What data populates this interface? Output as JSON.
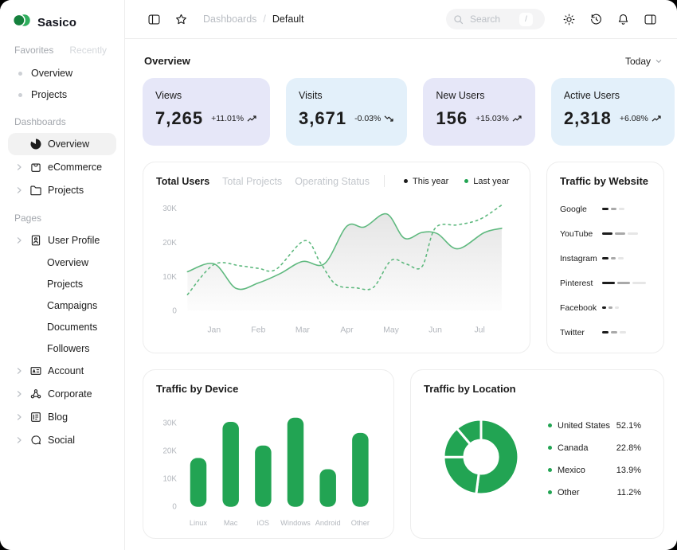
{
  "brand": {
    "name": "Sasico",
    "logo_dark_green": "#15803D",
    "logo_light_green": "#2FAE5D"
  },
  "sidebar": {
    "tabs": {
      "favorites": "Favorites",
      "recently": "Recently"
    },
    "favorites": [
      "Overview",
      "Projects"
    ],
    "dashboards": {
      "label": "Dashboards",
      "items": [
        {
          "label": "Overview",
          "icon": "pie-chart-icon",
          "active": true,
          "chevron": false
        },
        {
          "label": "eCommerce",
          "icon": "shopping-bag-icon",
          "active": false,
          "chevron": true
        },
        {
          "label": "Projects",
          "icon": "folder-icon",
          "active": false,
          "chevron": true
        }
      ]
    },
    "pages": {
      "label": "Pages",
      "items": [
        {
          "label": "User Profile",
          "icon": "id-card-icon",
          "chevron": true,
          "children": [
            "Overview",
            "Projects",
            "Campaigns",
            "Documents",
            "Followers"
          ]
        },
        {
          "label": "Account",
          "icon": "account-card-icon",
          "chevron": true,
          "children": []
        },
        {
          "label": "Corporate",
          "icon": "corporate-icon",
          "chevron": true,
          "children": []
        },
        {
          "label": "Blog",
          "icon": "blog-icon",
          "chevron": true,
          "children": []
        },
        {
          "label": "Social",
          "icon": "social-icon",
          "chevron": true,
          "children": []
        }
      ]
    }
  },
  "header": {
    "breadcrumb": {
      "section": "Dashboards",
      "separator": "/",
      "current": "Default"
    },
    "search": {
      "placeholder": "Search",
      "shortcut": "/"
    }
  },
  "main": {
    "title": "Overview",
    "period": "Today",
    "stats": [
      {
        "label": "Views",
        "value": "7,265",
        "delta": "+11.01%",
        "trend": "up",
        "bg": "#E6E7F8"
      },
      {
        "label": "Visits",
        "value": "3,671",
        "delta": "-0.03%",
        "trend": "down",
        "bg": "#E3F0FA"
      },
      {
        "label": "New Users",
        "value": "156",
        "delta": "+15.03%",
        "trend": "up",
        "bg": "#E6E7F8"
      },
      {
        "label": "Active Users",
        "value": "2,318",
        "delta": "+6.08%",
        "trend": "up",
        "bg": "#E3F0FA"
      }
    ]
  },
  "colors": {
    "green": "#22A453",
    "line_green": "#5FB97F",
    "text_dark": "#1C1C1C",
    "axis_gray": "#B3B7BD",
    "website_segments": [
      "#1C1C1C",
      "#A9A9A9",
      "#E6E6E6"
    ]
  },
  "chart_data": [
    {
      "type": "line",
      "title": "Total Users",
      "tabs": [
        "Total Users",
        "Total Projects",
        "Operating Status"
      ],
      "active_tab": "Total Users",
      "legend": [
        {
          "name": "This year",
          "color": "#1C1C1C"
        },
        {
          "name": "Last year",
          "color": "#22A453"
        }
      ],
      "x_ticks": [
        "Jan",
        "Feb",
        "Mar",
        "Apr",
        "May",
        "Jun",
        "Jul"
      ],
      "y_ticks": [
        {
          "v": 0,
          "label": "0"
        },
        {
          "v": 10,
          "label": "10K"
        },
        {
          "v": 20,
          "label": "20K"
        },
        {
          "v": 30,
          "label": "30K"
        }
      ],
      "unit": "K",
      "ylim": [
        0,
        32
      ],
      "series": [
        {
          "name": "This year",
          "style": "solid",
          "fill": true,
          "points": [
            [
              -0.6,
              11.5
            ],
            [
              0,
              13.8
            ],
            [
              0.5,
              6.6
            ],
            [
              1,
              8.2
            ],
            [
              1.5,
              11.0
            ],
            [
              2,
              14.5
            ],
            [
              2.5,
              13.9
            ],
            [
              3,
              24.8
            ],
            [
              3.4,
              24.6
            ],
            [
              3.9,
              28.4
            ],
            [
              4.3,
              21.3
            ],
            [
              4.7,
              23.0
            ],
            [
              5.05,
              22.6
            ],
            [
              5.5,
              18.2
            ],
            [
              6.1,
              22.9
            ],
            [
              6.5,
              24.2
            ]
          ]
        },
        {
          "name": "Last year",
          "style": "dashed",
          "fill": false,
          "points": [
            [
              -0.6,
              4.8
            ],
            [
              0,
              13.6
            ],
            [
              0.6,
              13.2
            ],
            [
              1,
              12.5
            ],
            [
              1.4,
              12.2
            ],
            [
              2.05,
              20.6
            ],
            [
              2.4,
              14.2
            ],
            [
              2.75,
              7.8
            ],
            [
              3.2,
              6.8
            ],
            [
              3.6,
              6.9
            ],
            [
              4,
              14.8
            ],
            [
              4.35,
              13.7
            ],
            [
              4.7,
              13.0
            ],
            [
              5.0,
              24.3
            ],
            [
              5.5,
              25.2
            ],
            [
              6,
              26.8
            ],
            [
              6.5,
              31.0
            ]
          ]
        }
      ]
    },
    {
      "type": "bar",
      "title": "Traffic by Device",
      "categories": [
        "Linux",
        "Mac",
        "iOS",
        "Windows",
        "Android",
        "Other"
      ],
      "values": [
        17.5,
        30.5,
        22,
        32,
        13.5,
        26.5
      ],
      "unit": "K",
      "y_ticks": [
        {
          "v": 0,
          "label": "0"
        },
        {
          "v": 10,
          "label": "10K"
        },
        {
          "v": 20,
          "label": "20K"
        },
        {
          "v": 30,
          "label": "30K"
        }
      ],
      "ylim": [
        0,
        34
      ],
      "bar_color": "#22A453"
    },
    {
      "type": "pie",
      "title": "Traffic by Location",
      "slices": [
        {
          "name": "United States",
          "pct": 52.1,
          "label": "52.1%"
        },
        {
          "name": "Canada",
          "pct": 22.8,
          "label": "22.8%"
        },
        {
          "name": "Mexico",
          "pct": 13.9,
          "label": "13.9%"
        },
        {
          "name": "Other",
          "pct": 11.2,
          "label": "11.2%"
        }
      ],
      "color": "#22A453"
    },
    {
      "type": "bar",
      "title": "Traffic by Website",
      "categories": [
        "Google",
        "YouTube",
        "Instagram",
        "Pinterest",
        "Facebook",
        "Twitter"
      ],
      "segment_widths": [
        [
          8,
          7,
          7
        ],
        [
          13,
          13,
          13
        ],
        [
          8,
          6,
          7
        ],
        [
          16,
          16,
          17
        ],
        [
          5,
          5,
          5
        ],
        [
          8,
          8,
          8
        ]
      ]
    }
  ]
}
